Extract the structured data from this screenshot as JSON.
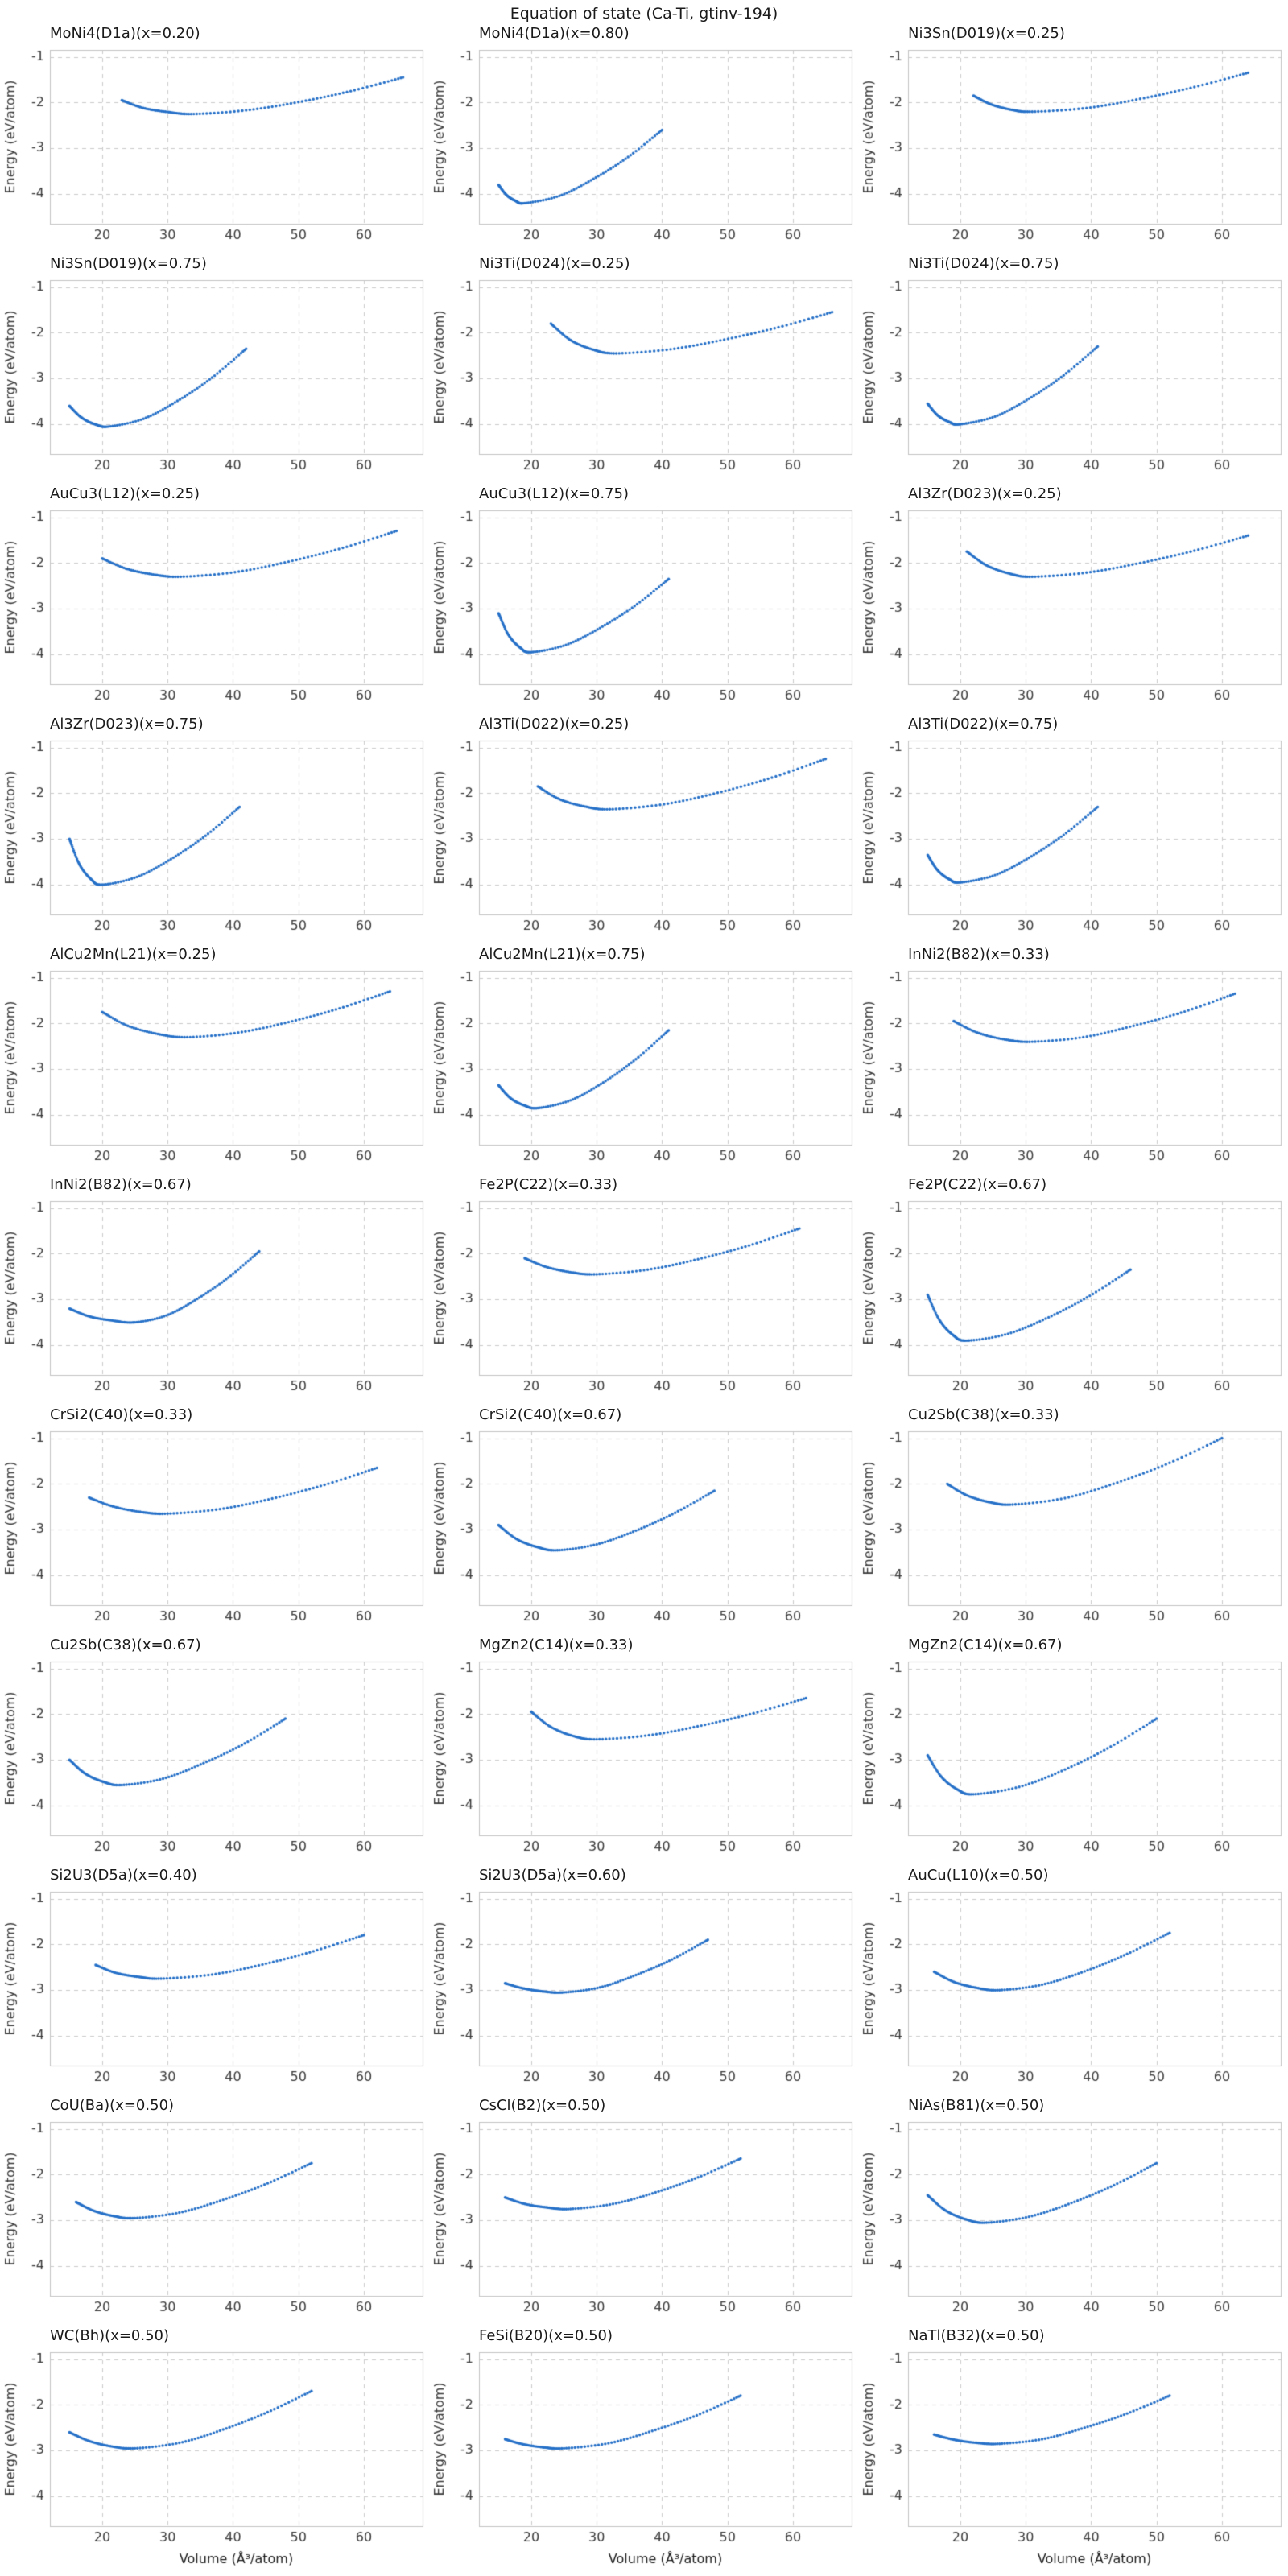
{
  "figure": {
    "suptitle": "Equation of state (Ca-Ti, gtinv-194)",
    "xlabel": "Volume (Å³/atom)",
    "ylabel": "Energy (eV/atom)",
    "accent_color": "#2570c8",
    "grid_color": "#cccccc",
    "spine_color": "#c4c4c4",
    "text_color": "#3a3a3a",
    "x_ticks": [
      20,
      30,
      40,
      50,
      60
    ],
    "y_ticks": [
      -1,
      -2,
      -3,
      -4
    ],
    "xlim": [
      12,
      69
    ],
    "ylim": [
      -4.65,
      -0.85
    ],
    "grid": true,
    "grid_style": "dashed",
    "legend": "none",
    "rows": 11,
    "cols": 3,
    "xlabel_bottom_row_only": true
  },
  "chart_data": [
    {
      "type": "scatter",
      "title": "MoNi4(D1a)(x=0.20)",
      "points": [
        [
          23,
          -1.95
        ],
        [
          26.3,
          -2.12
        ],
        [
          30.2,
          -2.21
        ],
        [
          34,
          -2.25
        ],
        [
          42,
          -2.17
        ],
        [
          50,
          -1.99
        ],
        [
          58,
          -1.75
        ],
        [
          66,
          -1.45
        ]
      ]
    },
    {
      "type": "scatter",
      "title": "MoNi4(D1a)(x=0.80)",
      "points": [
        [
          15,
          -3.8
        ],
        [
          16.2,
          -4.02
        ],
        [
          17.6,
          -4.15
        ],
        [
          19,
          -4.2
        ],
        [
          24.3,
          -4.04
        ],
        [
          29.5,
          -3.67
        ],
        [
          34.8,
          -3.19
        ],
        [
          40,
          -2.6
        ]
      ]
    },
    {
      "type": "scatter",
      "title": "Ni3Sn(D019)(x=0.25)",
      "points": [
        [
          22,
          -1.85
        ],
        [
          24.7,
          -2.04
        ],
        [
          27.9,
          -2.16
        ],
        [
          31,
          -2.2
        ],
        [
          39.3,
          -2.12
        ],
        [
          47.5,
          -1.92
        ],
        [
          55.8,
          -1.66
        ],
        [
          64,
          -1.35
        ]
      ]
    },
    {
      "type": "scatter",
      "title": "Ni3Sn(D019)(x=0.75)",
      "points": [
        [
          15,
          -3.6
        ],
        [
          16.8,
          -3.85
        ],
        [
          18.9,
          -4.0
        ],
        [
          21,
          -4.05
        ],
        [
          26.3,
          -3.88
        ],
        [
          31.5,
          -3.49
        ],
        [
          36.8,
          -2.98
        ],
        [
          42,
          -2.35
        ]
      ]
    },
    {
      "type": "scatter",
      "title": "Ni3Ti(D024)(x=0.25)",
      "points": [
        [
          23,
          -1.8
        ],
        [
          26,
          -2.16
        ],
        [
          29.5,
          -2.37
        ],
        [
          33,
          -2.45
        ],
        [
          41.3,
          -2.36
        ],
        [
          49.5,
          -2.15
        ],
        [
          57.8,
          -1.88
        ],
        [
          66,
          -1.55
        ]
      ]
    },
    {
      "type": "scatter",
      "title": "Ni3Ti(D024)(x=0.75)",
      "points": [
        [
          15,
          -3.55
        ],
        [
          16.5,
          -3.8
        ],
        [
          18.3,
          -3.95
        ],
        [
          20,
          -4.0
        ],
        [
          25.3,
          -3.83
        ],
        [
          30.5,
          -3.44
        ],
        [
          35.8,
          -2.93
        ],
        [
          41,
          -2.3
        ]
      ]
    },
    {
      "type": "scatter",
      "title": "AuCu3(L12)(x=0.25)",
      "points": [
        [
          20,
          -1.9
        ],
        [
          23.6,
          -2.12
        ],
        [
          27.8,
          -2.25
        ],
        [
          32,
          -2.3
        ],
        [
          40.3,
          -2.2
        ],
        [
          48.5,
          -1.97
        ],
        [
          56.8,
          -1.67
        ],
        [
          65,
          -1.3
        ]
      ]
    },
    {
      "type": "scatter",
      "title": "AuCu3(L12)(x=0.75)",
      "points": [
        [
          15,
          -3.1
        ],
        [
          16.5,
          -3.57
        ],
        [
          18.3,
          -3.85
        ],
        [
          20,
          -3.95
        ],
        [
          25.3,
          -3.79
        ],
        [
          30.5,
          -3.42
        ],
        [
          35.8,
          -2.94
        ],
        [
          41,
          -2.35
        ]
      ]
    },
    {
      "type": "scatter",
      "title": "Al3Zr(D023)(x=0.25)",
      "points": [
        [
          21,
          -1.75
        ],
        [
          24,
          -2.05
        ],
        [
          27.5,
          -2.23
        ],
        [
          31,
          -2.3
        ],
        [
          39.3,
          -2.21
        ],
        [
          47.5,
          -2.0
        ],
        [
          55.8,
          -1.73
        ],
        [
          64,
          -1.4
        ]
      ]
    },
    {
      "type": "scatter",
      "title": "Al3Zr(D023)(x=0.75)",
      "points": [
        [
          15,
          -3.0
        ],
        [
          16.5,
          -3.55
        ],
        [
          18.3,
          -3.88
        ],
        [
          20,
          -4.0
        ],
        [
          25.3,
          -3.83
        ],
        [
          30.5,
          -3.44
        ],
        [
          35.8,
          -2.93
        ],
        [
          41,
          -2.3
        ]
      ]
    },
    {
      "type": "scatter",
      "title": "Al3Ti(D022)(x=0.25)",
      "points": [
        [
          21,
          -1.85
        ],
        [
          24.3,
          -2.13
        ],
        [
          28.2,
          -2.29
        ],
        [
          32,
          -2.35
        ],
        [
          40.3,
          -2.24
        ],
        [
          48.5,
          -1.99
        ],
        [
          56.8,
          -1.66
        ],
        [
          65,
          -1.25
        ]
      ]
    },
    {
      "type": "scatter",
      "title": "Al3Ti(D022)(x=0.75)",
      "points": [
        [
          15,
          -3.35
        ],
        [
          16.5,
          -3.68
        ],
        [
          18.3,
          -3.88
        ],
        [
          20,
          -3.95
        ],
        [
          25.3,
          -3.79
        ],
        [
          30.5,
          -3.41
        ],
        [
          35.8,
          -2.91
        ],
        [
          41,
          -2.3
        ]
      ]
    },
    {
      "type": "scatter",
      "title": "AlCu2Mn(L21)(x=0.25)",
      "points": [
        [
          20,
          -1.75
        ],
        [
          23.9,
          -2.05
        ],
        [
          28.5,
          -2.23
        ],
        [
          33,
          -2.3
        ],
        [
          40.8,
          -2.2
        ],
        [
          48.5,
          -1.97
        ],
        [
          56.3,
          -1.67
        ],
        [
          64,
          -1.3
        ]
      ]
    },
    {
      "type": "scatter",
      "title": "AlCu2Mn(L21)(x=0.75)",
      "points": [
        [
          15,
          -3.35
        ],
        [
          16.8,
          -3.63
        ],
        [
          18.9,
          -3.79
        ],
        [
          21,
          -3.85
        ],
        [
          26,
          -3.68
        ],
        [
          31,
          -3.29
        ],
        [
          36,
          -2.78
        ],
        [
          41,
          -2.15
        ]
      ]
    },
    {
      "type": "scatter",
      "title": "InNi2(B82)(x=0.33)",
      "points": [
        [
          19,
          -1.95
        ],
        [
          22.6,
          -2.2
        ],
        [
          26.8,
          -2.35
        ],
        [
          31,
          -2.4
        ],
        [
          38.8,
          -2.3
        ],
        [
          46.5,
          -2.05
        ],
        [
          54.3,
          -1.74
        ],
        [
          62,
          -1.35
        ]
      ]
    },
    {
      "type": "scatter",
      "title": "InNi2(B82)(x=0.67)",
      "points": [
        [
          15,
          -3.2
        ],
        [
          18,
          -3.37
        ],
        [
          21.5,
          -3.46
        ],
        [
          25,
          -3.5
        ],
        [
          29.8,
          -3.35
        ],
        [
          34.5,
          -2.99
        ],
        [
          39.3,
          -2.52
        ],
        [
          44,
          -1.95
        ]
      ]
    },
    {
      "type": "scatter",
      "title": "Fe2P(C22)(x=0.33)",
      "points": [
        [
          19,
          -2.1
        ],
        [
          22.3,
          -2.29
        ],
        [
          26.2,
          -2.41
        ],
        [
          30,
          -2.45
        ],
        [
          37.8,
          -2.35
        ],
        [
          45.5,
          -2.12
        ],
        [
          53.3,
          -1.82
        ],
        [
          61,
          -1.45
        ]
      ]
    },
    {
      "type": "scatter",
      "title": "Fe2P(C22)(x=0.67)",
      "points": [
        [
          15,
          -2.9
        ],
        [
          16.8,
          -3.45
        ],
        [
          18.9,
          -3.78
        ],
        [
          21,
          -3.9
        ],
        [
          27.3,
          -3.75
        ],
        [
          33.5,
          -3.39
        ],
        [
          39.8,
          -2.92
        ],
        [
          46,
          -2.35
        ]
      ]
    },
    {
      "type": "scatter",
      "title": "CrSi2(C40)(x=0.33)",
      "points": [
        [
          18,
          -2.3
        ],
        [
          21.6,
          -2.49
        ],
        [
          25.8,
          -2.61
        ],
        [
          30,
          -2.65
        ],
        [
          38,
          -2.55
        ],
        [
          46,
          -2.32
        ],
        [
          54,
          -2.02
        ],
        [
          62,
          -1.65
        ]
      ]
    },
    {
      "type": "scatter",
      "title": "CrSi2(C40)(x=0.67)",
      "points": [
        [
          15,
          -2.9
        ],
        [
          17.7,
          -3.2
        ],
        [
          20.9,
          -3.38
        ],
        [
          24,
          -3.45
        ],
        [
          30,
          -3.32
        ],
        [
          36,
          -3.02
        ],
        [
          42,
          -2.63
        ],
        [
          48,
          -2.15
        ]
      ]
    },
    {
      "type": "scatter",
      "title": "Cu2Sb(C38)(x=0.33)",
      "points": [
        [
          18,
          -2.0
        ],
        [
          21,
          -2.25
        ],
        [
          24.5,
          -2.4
        ],
        [
          28,
          -2.45
        ],
        [
          36,
          -2.31
        ],
        [
          44,
          -1.97
        ],
        [
          52,
          -1.54
        ],
        [
          60,
          -1.0
        ]
      ]
    },
    {
      "type": "scatter",
      "title": "Cu2Sb(C38)(x=0.67)",
      "points": [
        [
          15,
          -3.0
        ],
        [
          17.4,
          -3.3
        ],
        [
          20.2,
          -3.48
        ],
        [
          23,
          -3.55
        ],
        [
          29.3,
          -3.41
        ],
        [
          35.5,
          -3.07
        ],
        [
          41.8,
          -2.64
        ],
        [
          48,
          -2.1
        ]
      ]
    },
    {
      "type": "scatter",
      "title": "MgZn2(C14)(x=0.33)",
      "points": [
        [
          20,
          -1.95
        ],
        [
          23,
          -2.28
        ],
        [
          26.5,
          -2.48
        ],
        [
          30,
          -2.55
        ],
        [
          38,
          -2.46
        ],
        [
          46,
          -2.25
        ],
        [
          54,
          -1.98
        ],
        [
          62,
          -1.65
        ]
      ]
    },
    {
      "type": "scatter",
      "title": "MgZn2(C14)(x=0.67)",
      "points": [
        [
          15,
          -2.9
        ],
        [
          17.1,
          -3.37
        ],
        [
          19.6,
          -3.65
        ],
        [
          22,
          -3.75
        ],
        [
          29,
          -3.59
        ],
        [
          36,
          -3.21
        ],
        [
          43,
          -2.71
        ],
        [
          50,
          -2.1
        ]
      ]
    },
    {
      "type": "scatter",
      "title": "Si2U3(D5a)(x=0.40)",
      "points": [
        [
          19,
          -2.45
        ],
        [
          22,
          -2.62
        ],
        [
          25.5,
          -2.71
        ],
        [
          29,
          -2.75
        ],
        [
          36.8,
          -2.66
        ],
        [
          44.5,
          -2.44
        ],
        [
          52.3,
          -2.15
        ],
        [
          60,
          -1.8
        ]
      ]
    },
    {
      "type": "scatter",
      "title": "Si2U3(D5a)(x=0.60)",
      "points": [
        [
          16,
          -2.85
        ],
        [
          18.7,
          -2.96
        ],
        [
          21.9,
          -3.03
        ],
        [
          25,
          -3.05
        ],
        [
          30.5,
          -2.94
        ],
        [
          36,
          -2.67
        ],
        [
          41.5,
          -2.33
        ],
        [
          47,
          -1.9
        ]
      ]
    },
    {
      "type": "scatter",
      "title": "AuCu(L10)(x=0.50)",
      "points": [
        [
          16,
          -2.6
        ],
        [
          19,
          -2.82
        ],
        [
          22.5,
          -2.95
        ],
        [
          26,
          -3.0
        ],
        [
          32.5,
          -2.88
        ],
        [
          39,
          -2.59
        ],
        [
          45.5,
          -2.21
        ],
        [
          52,
          -1.75
        ]
      ]
    },
    {
      "type": "scatter",
      "title": "CoU(Ba)(x=0.50)",
      "points": [
        [
          16,
          -2.6
        ],
        [
          18.7,
          -2.79
        ],
        [
          21.9,
          -2.91
        ],
        [
          25,
          -2.95
        ],
        [
          31.8,
          -2.83
        ],
        [
          38.5,
          -2.55
        ],
        [
          45.3,
          -2.19
        ],
        [
          52,
          -1.75
        ]
      ]
    },
    {
      "type": "scatter",
      "title": "CsCl(B2)(x=0.50)",
      "points": [
        [
          16,
          -2.5
        ],
        [
          19,
          -2.64
        ],
        [
          22.5,
          -2.72
        ],
        [
          26,
          -2.75
        ],
        [
          32.5,
          -2.64
        ],
        [
          39,
          -2.39
        ],
        [
          45.5,
          -2.06
        ],
        [
          52,
          -1.65
        ]
      ]
    },
    {
      "type": "scatter",
      "title": "NiAs(B81)(x=0.50)",
      "points": [
        [
          15,
          -2.45
        ],
        [
          17.7,
          -2.78
        ],
        [
          20.9,
          -2.98
        ],
        [
          24,
          -3.05
        ],
        [
          30.5,
          -2.92
        ],
        [
          37,
          -2.62
        ],
        [
          43.5,
          -2.23
        ],
        [
          50,
          -1.75
        ]
      ]
    },
    {
      "type": "scatter",
      "title": "WC(Bh)(x=0.50)",
      "points": [
        [
          15,
          -2.6
        ],
        [
          18,
          -2.79
        ],
        [
          21.5,
          -2.91
        ],
        [
          25,
          -2.95
        ],
        [
          31.8,
          -2.83
        ],
        [
          38.5,
          -2.54
        ],
        [
          45.3,
          -2.16
        ],
        [
          52,
          -1.7
        ]
      ]
    },
    {
      "type": "scatter",
      "title": "FeSi(B20)(x=0.50)",
      "points": [
        [
          16,
          -2.75
        ],
        [
          18.7,
          -2.86
        ],
        [
          21.9,
          -2.93
        ],
        [
          25,
          -2.95
        ],
        [
          31.8,
          -2.84
        ],
        [
          38.5,
          -2.57
        ],
        [
          45.3,
          -2.23
        ],
        [
          52,
          -1.8
        ]
      ]
    },
    {
      "type": "scatter",
      "title": "NaTl(B32)(x=0.50)",
      "points": [
        [
          16,
          -2.65
        ],
        [
          19,
          -2.76
        ],
        [
          22.5,
          -2.83
        ],
        [
          26,
          -2.85
        ],
        [
          32.5,
          -2.75
        ],
        [
          39,
          -2.5
        ],
        [
          45.5,
          -2.19
        ],
        [
          52,
          -1.8
        ]
      ]
    }
  ]
}
